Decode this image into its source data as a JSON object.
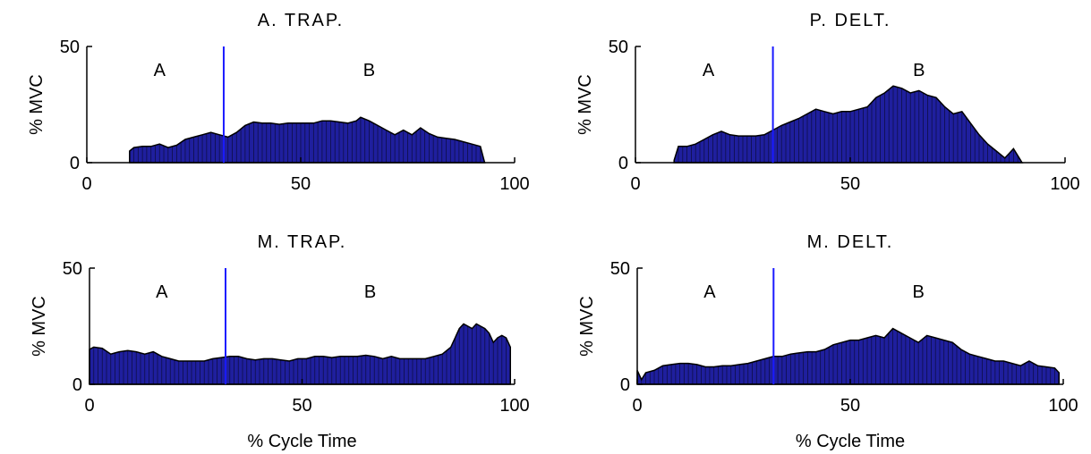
{
  "chart_data": [
    {
      "type": "area",
      "title": "A. TRAP.",
      "ylabel": "% MVC",
      "xlabel": "",
      "xlim": [
        0,
        100
      ],
      "ylim": [
        0,
        50
      ],
      "xticks": [
        "0",
        "50",
        "100"
      ],
      "yticks": [
        "0",
        "50"
      ],
      "phase_boundary": 32,
      "phase_labels": [
        {
          "text": "A",
          "x": 17
        },
        {
          "text": "B",
          "x": 66
        }
      ],
      "series": [
        {
          "color": "#1f1f9e",
          "x": [
            10,
            11,
            13,
            15,
            17,
            19,
            21,
            23,
            25,
            27,
            29,
            31,
            33,
            35,
            37,
            39,
            41,
            43,
            45,
            47,
            49,
            51,
            53,
            55,
            57,
            59,
            61,
            63,
            64,
            66,
            68,
            70,
            72,
            74,
            76,
            78,
            80,
            82,
            84,
            86,
            88,
            90,
            92,
            93
          ],
          "y": [
            5,
            6.5,
            7,
            7,
            8,
            6.5,
            7.5,
            10,
            11,
            12,
            13,
            12,
            11,
            13,
            16,
            17.5,
            17,
            17,
            16.5,
            17,
            17,
            17,
            17,
            18,
            18,
            17.5,
            17,
            18,
            19.5,
            18,
            16,
            14,
            12,
            14,
            12,
            15,
            12.5,
            11,
            10.5,
            10,
            9,
            8,
            7,
            0
          ]
        }
      ]
    },
    {
      "type": "area",
      "title": "P. DELT.",
      "ylabel": "% MVC",
      "xlabel": "",
      "xlim": [
        0,
        100
      ],
      "ylim": [
        0,
        50
      ],
      "xticks": [
        "0",
        "50",
        "100"
      ],
      "yticks": [
        "0",
        "50"
      ],
      "phase_boundary": 32,
      "phase_labels": [
        {
          "text": "A",
          "x": 17
        },
        {
          "text": "B",
          "x": 66
        }
      ],
      "series": [
        {
          "color": "#1f1f9e",
          "x": [
            9,
            10,
            12,
            14,
            16,
            18,
            20,
            22,
            24,
            26,
            28,
            30,
            32,
            34,
            36,
            38,
            40,
            42,
            44,
            46,
            48,
            50,
            52,
            54,
            56,
            58,
            60,
            62,
            64,
            66,
            68,
            70,
            72,
            74,
            76,
            78,
            80,
            82,
            84,
            86,
            87,
            88,
            89,
            90
          ],
          "y": [
            1,
            7,
            7,
            8,
            10,
            12,
            13.5,
            12,
            11.5,
            11.5,
            11.5,
            12,
            14,
            16,
            17.5,
            19,
            21,
            23,
            22,
            21,
            22,
            22,
            23,
            24,
            28,
            30,
            33,
            32,
            30,
            31,
            29,
            28,
            24,
            21,
            22,
            17,
            12,
            8,
            5,
            2,
            4,
            6,
            3,
            0
          ]
        }
      ]
    },
    {
      "type": "area",
      "title": "M. TRAP.",
      "ylabel": "% MVC",
      "xlabel": "% Cycle Time",
      "xlim": [
        0,
        100
      ],
      "ylim": [
        0,
        50
      ],
      "xticks": [
        "0",
        "50",
        "100"
      ],
      "yticks": [
        "0",
        "50"
      ],
      "phase_boundary": 32,
      "phase_labels": [
        {
          "text": "A",
          "x": 17
        },
        {
          "text": "B",
          "x": 66
        }
      ],
      "series": [
        {
          "color": "#1f1f9e",
          "x": [
            0,
            1,
            3,
            5,
            7,
            9,
            11,
            13,
            15,
            17,
            19,
            21,
            23,
            25,
            27,
            29,
            31,
            33,
            35,
            37,
            39,
            41,
            43,
            45,
            47,
            49,
            51,
            53,
            55,
            57,
            59,
            61,
            63,
            65,
            67,
            69,
            71,
            73,
            75,
            77,
            79,
            81,
            83,
            85,
            86,
            87,
            88,
            89,
            90,
            91,
            92,
            93,
            94,
            95,
            96,
            97,
            98,
            99
          ],
          "y": [
            15,
            16,
            15.5,
            13,
            14,
            14.5,
            14,
            13,
            14,
            12,
            11,
            10,
            10,
            10,
            10,
            11,
            11.5,
            12,
            12,
            11,
            10.5,
            11,
            11,
            10.5,
            10,
            11,
            11,
            12,
            12,
            11.5,
            12,
            12,
            12,
            12.5,
            12,
            11,
            12,
            11,
            11,
            11,
            11,
            12,
            13,
            16,
            20,
            24,
            26,
            25,
            24,
            26,
            25,
            24,
            22,
            18,
            20,
            21,
            20,
            16
          ]
        }
      ]
    },
    {
      "type": "area",
      "title": "M. DELT.",
      "ylabel": "% MVC",
      "xlabel": "% Cycle Time",
      "xlim": [
        0,
        100
      ],
      "ylim": [
        0,
        50
      ],
      "xticks": [
        "0",
        "50",
        "100"
      ],
      "yticks": [
        "0",
        "50"
      ],
      "phase_boundary": 32,
      "phase_labels": [
        {
          "text": "A",
          "x": 17
        },
        {
          "text": "B",
          "x": 66
        }
      ],
      "series": [
        {
          "color": "#1f1f9e",
          "x": [
            0,
            1,
            2,
            4,
            6,
            8,
            10,
            12,
            14,
            16,
            18,
            20,
            22,
            24,
            26,
            28,
            30,
            32,
            34,
            36,
            38,
            40,
            42,
            44,
            46,
            48,
            50,
            52,
            54,
            56,
            58,
            60,
            62,
            64,
            66,
            68,
            70,
            72,
            74,
            76,
            78,
            80,
            82,
            84,
            86,
            88,
            90,
            92,
            94,
            96,
            98,
            99
          ],
          "y": [
            6,
            2,
            5,
            6,
            8,
            8.5,
            9,
            9,
            8.5,
            7.5,
            7.5,
            8,
            8,
            8.5,
            9,
            10,
            11,
            12,
            12,
            13,
            13.5,
            14,
            14,
            15,
            17,
            18,
            19,
            19,
            20,
            21,
            20,
            24,
            22,
            20,
            18,
            21,
            20,
            19,
            18,
            15,
            13,
            12,
            11,
            10,
            10,
            9,
            8,
            10,
            8,
            7.5,
            7,
            5
          ]
        }
      ]
    }
  ]
}
